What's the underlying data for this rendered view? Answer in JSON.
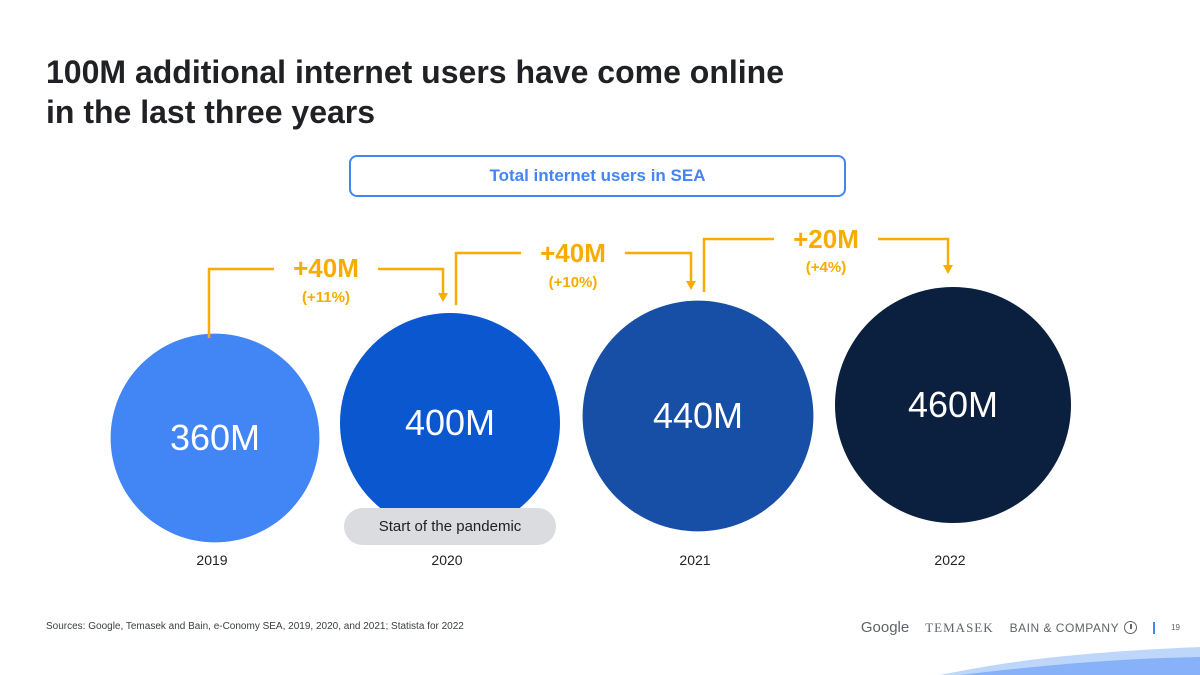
{
  "title": {
    "line1": "100M additional internet users have come online",
    "line2": "in the last three years"
  },
  "subtitle": "Total internet users in SEA",
  "chart_data": {
    "type": "bubble",
    "unit": "M",
    "categories": [
      "2019",
      "2020",
      "2021",
      "2022"
    ],
    "values": [
      360,
      400,
      440,
      460
    ],
    "labels": [
      "360M",
      "400M",
      "440M",
      "460M"
    ],
    "colors": [
      "#4285f4",
      "#0b57d0",
      "#174ea6",
      "#0b1f3f"
    ],
    "changes": [
      {
        "from": "2019",
        "to": "2020",
        "label": "+40M",
        "pct": "(+11%)"
      },
      {
        "from": "2020",
        "to": "2021",
        "label": "+40M",
        "pct": "(+10%)"
      },
      {
        "from": "2021",
        "to": "2022",
        "label": "+20M",
        "pct": "(+4%)"
      }
    ],
    "annotation": {
      "category": "2020",
      "text": "Start of the pandemic"
    },
    "change_color": "#f9ab00"
  },
  "footer": {
    "sources": "Sources: Google, Temasek and Bain, e-Conomy SEA, 2019, 2020, and 2021; Statista for 2022",
    "logos": [
      "Google",
      "TEMASEK",
      "BAIN & COMPANY"
    ],
    "page_number": "19"
  }
}
